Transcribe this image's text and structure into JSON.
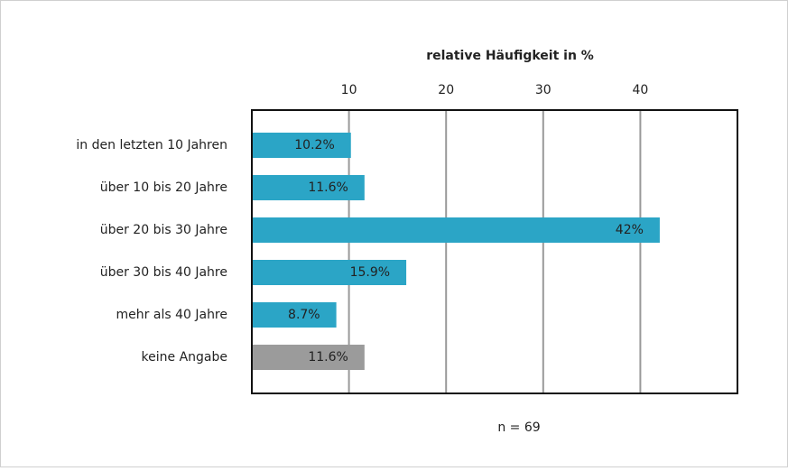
{
  "chart_data": {
    "type": "barh",
    "x_label": "relative Häufigkeit in %",
    "annotation": "n = 69",
    "categories": [
      "in den letzten 10 Jahren",
      "über 10 bis 20 Jahre",
      "über 20 bis 30 Jahre",
      "über 30 bis 40 Jahre",
      "mehr als 40 Jahre",
      "keine Angabe"
    ],
    "values": [
      10.2,
      11.6,
      42,
      15.9,
      8.7,
      11.6
    ],
    "value_labels": [
      "10.2%",
      "11.6%",
      "42%",
      "15.9%",
      "8.7%",
      "11.6%"
    ],
    "colors": [
      "#2ba5c6",
      "#2ba5c6",
      "#2ba5c6",
      "#2ba5c6",
      "#2ba5c6",
      "#9b9b9b"
    ],
    "xlim": [
      0,
      50
    ],
    "xticks": [
      10,
      20,
      30,
      40
    ],
    "grid": true
  }
}
